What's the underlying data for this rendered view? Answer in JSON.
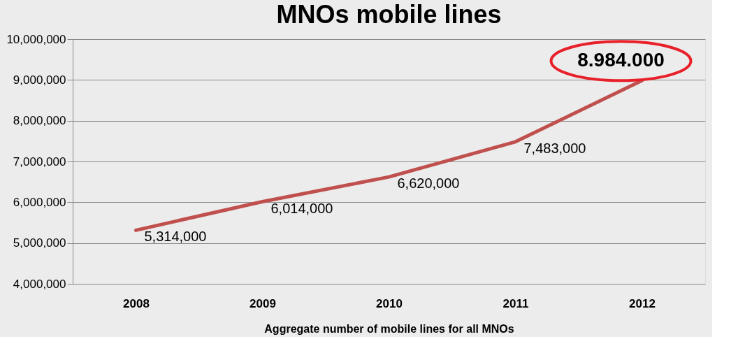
{
  "chart_data": {
    "type": "line",
    "title": "MNOs mobile lines",
    "xlabel": "Aggregate number of mobile lines for all MNOs",
    "categories": [
      "2008",
      "2009",
      "2010",
      "2011",
      "2012"
    ],
    "series": [
      {
        "color": "#c0504d",
        "values": [
          5314000,
          6014000,
          6620000,
          7483000,
          8984000
        ],
        "value_labels": [
          "5,314,000",
          "6,014,000",
          "6,620,000",
          "7,483,000",
          "8.984.000"
        ]
      }
    ],
    "ylim": [
      4000000,
      10000000
    ],
    "yticks": [
      {
        "value": 4000000,
        "label": "4,000,000"
      },
      {
        "value": 5000000,
        "label": "5,000,000"
      },
      {
        "value": 6000000,
        "label": "6,000,000"
      },
      {
        "value": 7000000,
        "label": "7,000,000"
      },
      {
        "value": 8000000,
        "label": "8,000,000"
      },
      {
        "value": 9000000,
        "label": "9,000,000"
      },
      {
        "value": 10000000,
        "label": "10,000,000"
      }
    ],
    "grid": "y",
    "marker": "none",
    "line_style": "solid"
  }
}
